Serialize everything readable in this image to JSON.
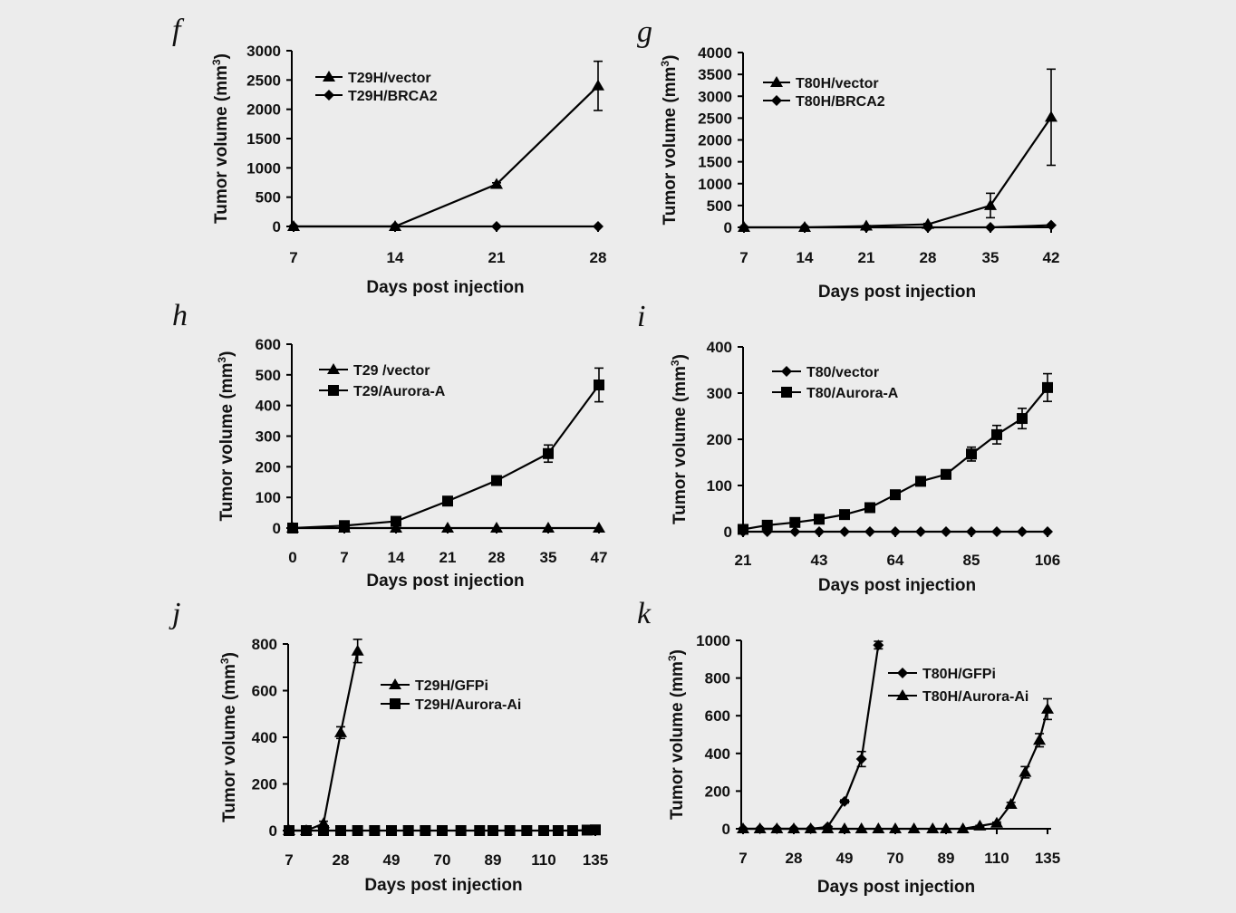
{
  "chart_data": [
    {
      "id": "f",
      "panel_label": "f",
      "type": "line",
      "xlabel": "Days post injection",
      "ylabel": "Tumor volume (mm",
      "ylabel_sup": "3",
      "ylabel_end": ")",
      "x_ticks": [
        7,
        14,
        21,
        28
      ],
      "y_ticks": [
        0,
        500,
        1000,
        1500,
        2000,
        2500,
        3000
      ],
      "ylim": [
        0,
        3000
      ],
      "series": [
        {
          "name": "T29H/vector",
          "marker": "triangle",
          "x": [
            7,
            14,
            21,
            28
          ],
          "y": [
            0,
            0,
            720,
            2400
          ],
          "err": [
            0,
            0,
            25,
            420
          ]
        },
        {
          "name": "T29H/BRCA2",
          "marker": "diamond",
          "x": [
            7,
            14,
            21,
            28
          ],
          "y": [
            0,
            0,
            0,
            0
          ],
          "err": [
            0,
            0,
            0,
            0
          ]
        }
      ]
    },
    {
      "id": "g",
      "panel_label": "g",
      "type": "line",
      "xlabel": "Days post injection",
      "ylabel": "Tumor volume (mm",
      "ylabel_sup": "3",
      "ylabel_end": ")",
      "x_ticks": [
        7,
        14,
        21,
        28,
        35,
        42
      ],
      "y_ticks": [
        0,
        500,
        1000,
        1500,
        2000,
        2500,
        3000,
        3500,
        4000
      ],
      "ylim": [
        0,
        4000
      ],
      "series": [
        {
          "name": "T80H/vector",
          "marker": "triangle",
          "x": [
            7,
            14,
            21,
            28,
            35,
            42
          ],
          "y": [
            0,
            0,
            30,
            70,
            500,
            2520
          ],
          "err": [
            0,
            0,
            10,
            20,
            280,
            1100
          ]
        },
        {
          "name": "T80H/BRCA2",
          "marker": "diamond",
          "x": [
            7,
            14,
            21,
            28,
            35,
            42
          ],
          "y": [
            0,
            0,
            0,
            0,
            0,
            50
          ],
          "err": [
            0,
            0,
            0,
            0,
            0,
            0
          ]
        }
      ]
    },
    {
      "id": "h",
      "panel_label": "h",
      "type": "line",
      "xlabel": "Days post injection",
      "ylabel": "Tumor volume (mm",
      "ylabel_sup": "3",
      "ylabel_end": ")",
      "x_ticks": [
        0,
        7,
        14,
        21,
        28,
        35,
        47
      ],
      "y_ticks": [
        0,
        100,
        200,
        300,
        400,
        500,
        600
      ],
      "ylim": [
        0,
        600
      ],
      "series": [
        {
          "name": "T29 /vector",
          "marker": "triangle",
          "x": [
            0,
            7,
            14,
            21,
            28,
            35,
            47
          ],
          "y": [
            0,
            0,
            0,
            0,
            0,
            0,
            0
          ],
          "err": [
            0,
            0,
            0,
            0,
            0,
            0,
            0
          ]
        },
        {
          "name": "T29/Aurora-A",
          "marker": "square",
          "x": [
            0,
            7,
            14,
            21,
            28,
            35,
            47
          ],
          "y": [
            0,
            8,
            22,
            88,
            155,
            243,
            467
          ],
          "err": [
            0,
            3,
            5,
            8,
            8,
            28,
            55
          ]
        }
      ]
    },
    {
      "id": "i",
      "panel_label": "i",
      "type": "line",
      "xlabel": "Days post injection",
      "ylabel": "Tumor volume (mm",
      "ylabel_sup": "3",
      "ylabel_end": ")",
      "x_ticks": [
        21,
        43,
        64,
        85,
        106
      ],
      "y_ticks": [
        0,
        100,
        200,
        300,
        400
      ],
      "ylim": [
        0,
        400
      ],
      "series": [
        {
          "name": "T80/vector",
          "marker": "diamond",
          "x": [
            21,
            28,
            36,
            43,
            50,
            57,
            64,
            71,
            78,
            85,
            92,
            99,
            106
          ],
          "y": [
            0,
            0,
            0,
            0,
            0,
            0,
            0,
            0,
            0,
            0,
            0,
            0,
            0
          ],
          "err": [
            0,
            0,
            0,
            0,
            0,
            0,
            0,
            0,
            0,
            0,
            0,
            0,
            0
          ]
        },
        {
          "name": "T80/Aurora-A",
          "marker": "square",
          "x": [
            21,
            28,
            36,
            43,
            50,
            57,
            64,
            71,
            78,
            85,
            92,
            99,
            106
          ],
          "y": [
            5,
            14,
            20,
            27,
            37,
            52,
            80,
            109,
            124,
            168,
            210,
            245,
            312
          ],
          "err": [
            2,
            3,
            3,
            4,
            5,
            5,
            6,
            6,
            7,
            15,
            20,
            22,
            30
          ]
        }
      ]
    },
    {
      "id": "j",
      "panel_label": "j",
      "type": "line",
      "xlabel": "Days post injection",
      "ylabel": "Tumor volume (mm",
      "ylabel_sup": "3",
      "ylabel_end": ")",
      "x_ticks": [
        7,
        28,
        49,
        70,
        89,
        110,
        135
      ],
      "y_ticks": [
        0,
        200,
        400,
        600,
        800
      ],
      "ylim": [
        0,
        800
      ],
      "series": [
        {
          "name": "T29H/GFPi",
          "marker": "triangle",
          "x": [
            7,
            14,
            21,
            28,
            35
          ],
          "y": [
            0,
            0,
            30,
            420,
            770
          ],
          "err": [
            0,
            0,
            10,
            25,
            50
          ]
        },
        {
          "name": "T29H/Aurora-Ai",
          "marker": "square",
          "x": [
            7,
            14,
            21,
            28,
            35,
            42,
            49,
            56,
            63,
            70,
            77,
            84,
            89,
            96,
            103,
            110,
            117,
            124,
            131,
            135
          ],
          "y": [
            0,
            0,
            0,
            0,
            0,
            0,
            0,
            0,
            0,
            0,
            0,
            0,
            0,
            0,
            0,
            0,
            0,
            0,
            2,
            3
          ],
          "err": [
            0,
            0,
            0,
            0,
            0,
            0,
            0,
            0,
            0,
            0,
            0,
            0,
            0,
            0,
            0,
            0,
            0,
            0,
            0,
            0
          ]
        }
      ]
    },
    {
      "id": "k",
      "panel_label": "k",
      "type": "line",
      "xlabel": "Days post injection",
      "ylabel": "Tumor volume (mm",
      "ylabel_sup": "3",
      "ylabel_end": ")",
      "x_ticks": [
        7,
        28,
        49,
        70,
        89,
        110,
        135
      ],
      "y_ticks": [
        0,
        200,
        400,
        600,
        800,
        1000
      ],
      "ylim": [
        0,
        1000
      ],
      "series": [
        {
          "name": "T80H/GFPi",
          "marker": "diamond",
          "x": [
            7,
            14,
            21,
            28,
            35,
            42,
            49,
            56,
            63
          ],
          "y": [
            0,
            0,
            0,
            0,
            0,
            10,
            145,
            370,
            975
          ],
          "err": [
            0,
            0,
            0,
            0,
            0,
            3,
            8,
            40,
            20
          ]
        },
        {
          "name": "T80H/Aurora-Ai",
          "marker": "triangle",
          "x": [
            7,
            14,
            21,
            28,
            35,
            42,
            49,
            56,
            63,
            70,
            77,
            84,
            89,
            96,
            103,
            110,
            117,
            124,
            131,
            135
          ],
          "y": [
            0,
            0,
            0,
            0,
            0,
            0,
            0,
            0,
            0,
            0,
            0,
            0,
            0,
            0,
            15,
            30,
            130,
            300,
            470,
            635
          ],
          "err": [
            0,
            0,
            0,
            0,
            0,
            0,
            0,
            0,
            0,
            0,
            0,
            0,
            0,
            0,
            3,
            5,
            10,
            30,
            35,
            55
          ]
        }
      ]
    }
  ]
}
